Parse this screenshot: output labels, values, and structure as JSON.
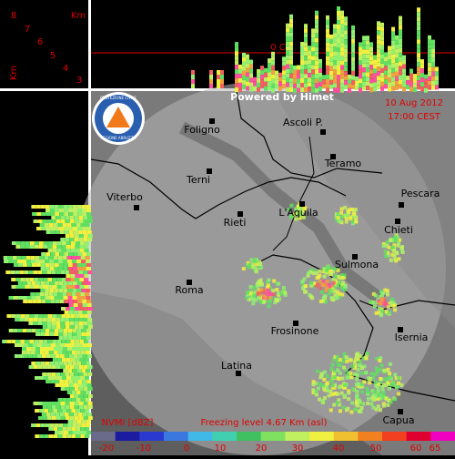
{
  "profile": {
    "unit_top": "Km",
    "unit_side": "Km",
    "heights": [
      "8",
      "7",
      "6",
      "5",
      "4",
      "3"
    ],
    "zero_line": "0 C°"
  },
  "header": {
    "powered": "Powered by Himet",
    "date": "10 Aug 2012",
    "time": "17:00 CEST",
    "logo_top": "PROTEZIONE CIVILE",
    "logo_bottom": "REGIONE ABRUZZO"
  },
  "cities": [
    "Foligno",
    "Ascoli P.",
    "Terni",
    "Teramo",
    "Viterbo",
    "Rieti",
    "L'Aquila",
    "Pescara",
    "Chieti",
    "Sulmona",
    "Roma",
    "Frosinone",
    "Isernia",
    "Latina",
    "Capua"
  ],
  "footer": {
    "product": "NVMI [dBZ]",
    "freezing": "Freezing level  4.67 Km (asl)"
  },
  "scale": [
    "-20",
    "-10",
    "0",
    "10",
    "20",
    "30",
    "40",
    "50",
    "60",
    "65"
  ]
}
